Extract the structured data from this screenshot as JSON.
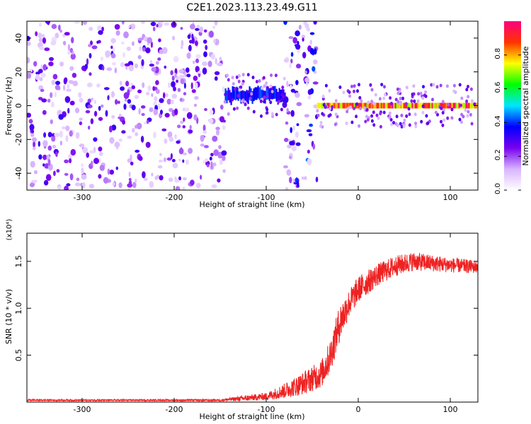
{
  "title": "C2E1.2023.113.23.49.G11",
  "chart_data": [
    {
      "type": "heatmap",
      "xlabel": "Height of straight line (km)",
      "ylabel": "Frequency (Hz)",
      "xlim": [
        -360,
        130
      ],
      "ylim": [
        -50,
        50
      ],
      "x_ticks": [
        -300,
        -200,
        -100,
        0,
        100
      ],
      "y_ticks": [
        -40,
        -20,
        0,
        20,
        40
      ],
      "grid": false,
      "colorbar": {
        "label": "Normalized spectral amplitude",
        "range": [
          0,
          1
        ],
        "ticks": [
          "0.0",
          "0.2",
          "0.4",
          "0.6",
          "0.8"
        ],
        "colormap": "rainbow-white",
        "colors": [
          "#ffffff",
          "#d8b4ff",
          "#7700ee",
          "#0000ff",
          "#00e5ff",
          "#00ff00",
          "#ffff00",
          "#ff3300",
          "#ff0080"
        ]
      },
      "regions": [
        {
          "x_range": [
            -360,
            -145
          ],
          "description": "broadband noise",
          "amplitude_level": 0.15
        },
        {
          "x_range": [
            -145,
            -80
          ],
          "freq_center": 6,
          "amplitude_level": 0.4
        },
        {
          "x_range": [
            -80,
            -45
          ],
          "description": "broadband noise",
          "amplitude_level": 0.2
        },
        {
          "x_range": [
            -45,
            130
          ],
          "freq_center": 0,
          "amplitude_level": 0.9
        }
      ]
    },
    {
      "type": "line",
      "xlabel": "Height of straight line (km)",
      "ylabel": "SNR (10 * v/v)",
      "y_multiplier": "(x10⁴)",
      "xlim": [
        -360,
        130
      ],
      "ylim": [
        0,
        1.8
      ],
      "x_ticks": [
        -300,
        -200,
        -100,
        0,
        100
      ],
      "y_ticks": [
        "0.5",
        "1.0",
        "1.5"
      ],
      "y_tick_values": [
        0.5,
        1.0,
        1.5
      ],
      "grid": false,
      "series": [
        {
          "color": "#ee2222",
          "x": [
            -360,
            -250,
            -150,
            -125,
            -100,
            -80,
            -60,
            -40,
            -30,
            -20,
            -10,
            0,
            20,
            40,
            60,
            80,
            100,
            130
          ],
          "y": [
            0.02,
            0.02,
            0.02,
            0.04,
            0.06,
            0.12,
            0.2,
            0.3,
            0.5,
            0.85,
            1.05,
            1.2,
            1.35,
            1.45,
            1.5,
            1.48,
            1.46,
            1.44
          ],
          "noise": [
            0.008,
            0.008,
            0.01,
            0.03,
            0.04,
            0.08,
            0.12,
            0.15,
            0.18,
            0.2,
            0.15,
            0.14,
            0.12,
            0.11,
            0.1,
            0.09,
            0.08,
            0.07
          ]
        }
      ]
    }
  ]
}
